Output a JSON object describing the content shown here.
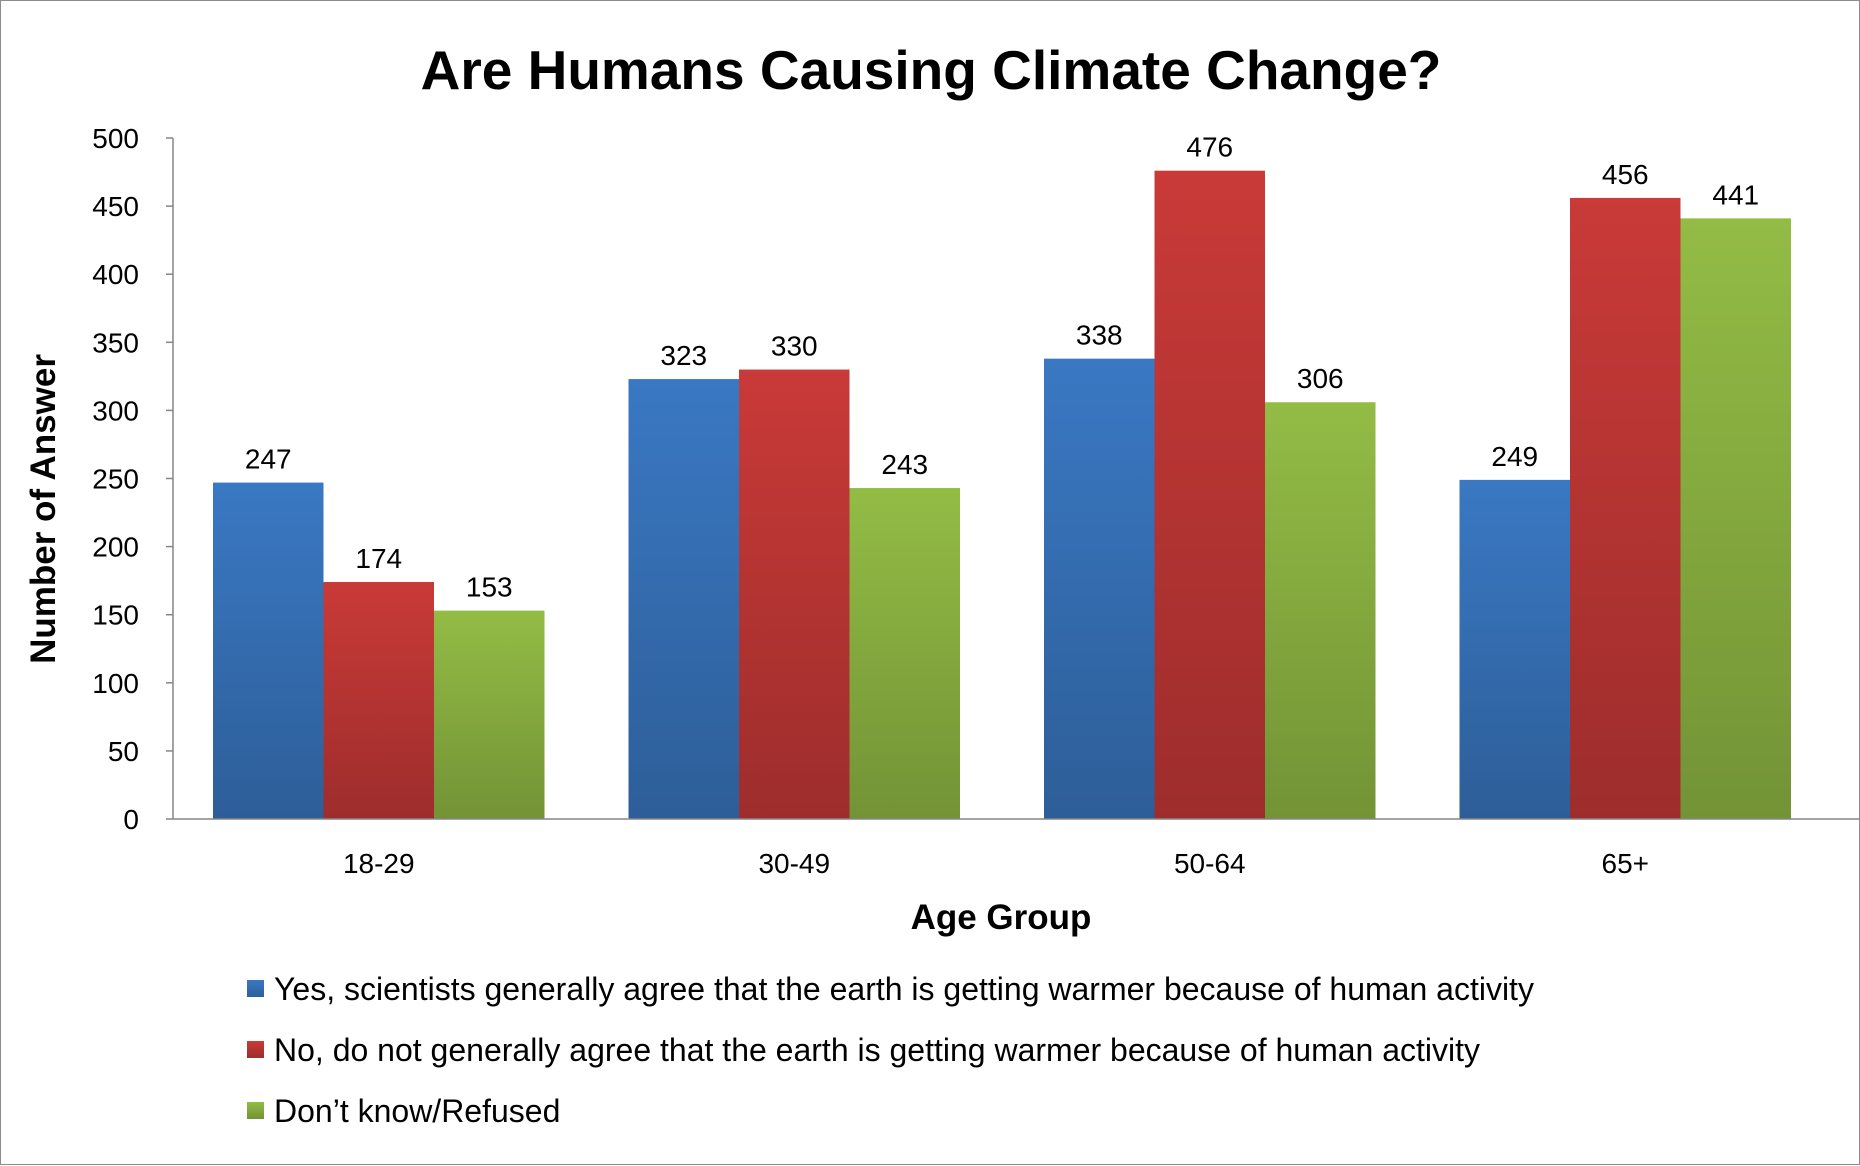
{
  "chart_data": {
    "type": "bar",
    "title": "Are Humans Causing Climate Change?",
    "xlabel": "Age Group",
    "ylabel": "Number of Answer",
    "categories": [
      "18-29",
      "30-49",
      "50-64",
      "65+"
    ],
    "ylim": [
      0,
      500
    ],
    "yticks": [
      0,
      50,
      100,
      150,
      200,
      250,
      300,
      350,
      400,
      450,
      500
    ],
    "grid": false,
    "legend_position": "bottom",
    "series": [
      {
        "name": "Yes, scientists generally agree that the earth is getting warmer because of human activity",
        "color": "#3a78c3",
        "values": [
          247,
          323,
          338,
          249
        ]
      },
      {
        "name": "No, do not generally agree that the earth is getting warmer because of human activity",
        "color": "#c93a38",
        "values": [
          174,
          330,
          476,
          456
        ]
      },
      {
        "name": "Don’t know/Refused",
        "color": "#93bc45",
        "values": [
          153,
          243,
          306,
          441
        ]
      }
    ]
  }
}
